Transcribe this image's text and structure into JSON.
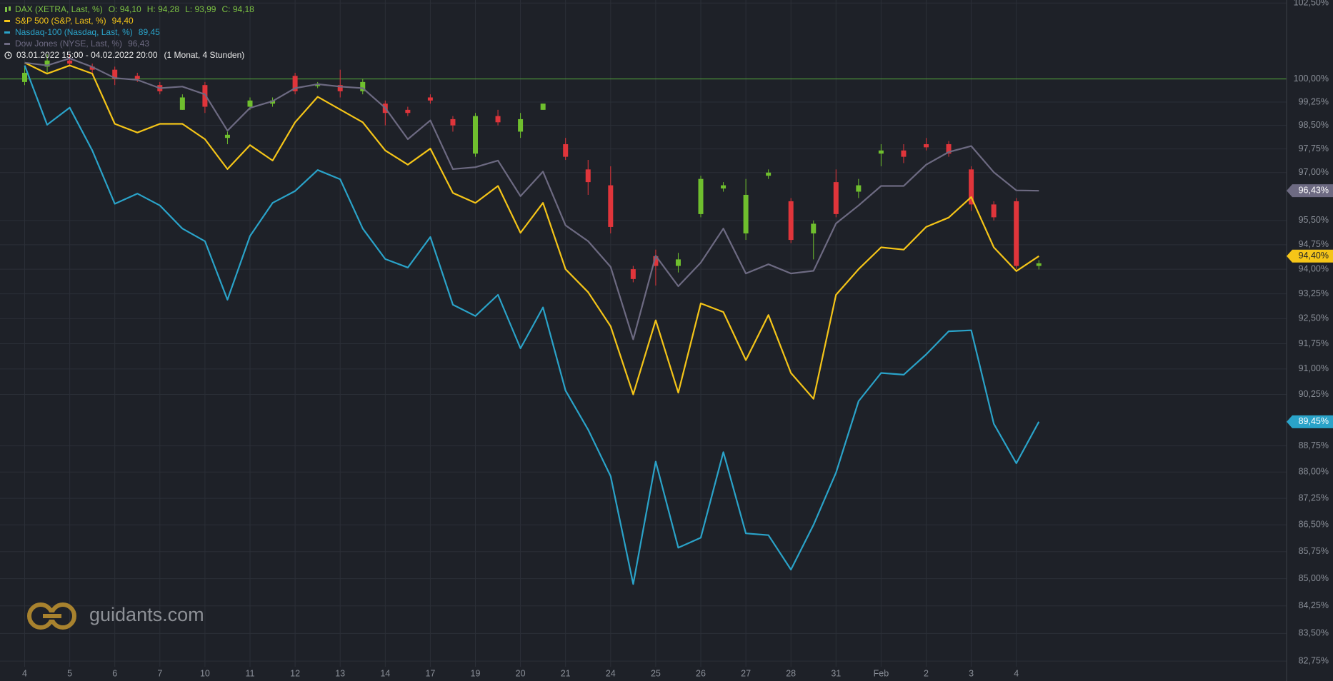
{
  "chart_data": {
    "type": "line",
    "log_scale": true,
    "ylim": [
      82.6,
      102.6
    ],
    "yticks": [
      {
        "value": 102.5,
        "label": "102,50%"
      },
      {
        "value": 100,
        "label": "100,00%"
      },
      {
        "value": 99.25,
        "label": "99,25%"
      },
      {
        "value": 98.5,
        "label": "98,50%"
      },
      {
        "value": 97.75,
        "label": "97,75%"
      },
      {
        "value": 97,
        "label": "97,00%"
      },
      {
        "value": 95.5,
        "label": "95,50%"
      },
      {
        "value": 94.75,
        "label": "94,75%"
      },
      {
        "value": 94,
        "label": "94,00%"
      },
      {
        "value": 93.25,
        "label": "93,25%"
      },
      {
        "value": 92.5,
        "label": "92,50%"
      },
      {
        "value": 91.75,
        "label": "91,75%"
      },
      {
        "value": 91,
        "label": "91,00%"
      },
      {
        "value": 90.25,
        "label": "90,25%"
      },
      {
        "value": 88.75,
        "label": "88,75%"
      },
      {
        "value": 88,
        "label": "88,00%"
      },
      {
        "value": 87.25,
        "label": "87,25%"
      },
      {
        "value": 86.5,
        "label": "86,50%"
      },
      {
        "value": 85.75,
        "label": "85,75%"
      },
      {
        "value": 85,
        "label": "85,00%"
      },
      {
        "value": 84.25,
        "label": "84,25%"
      },
      {
        "value": 83.5,
        "label": "83,50%"
      },
      {
        "value": 82.75,
        "label": "82,75%"
      }
    ],
    "grid": true,
    "reference_line": 100,
    "reference_color": "#4f9a3a",
    "categories": [
      "4",
      null,
      "5",
      null,
      "6",
      null,
      "7",
      null,
      "10",
      null,
      "11",
      null,
      "12",
      null,
      "13",
      null,
      "14",
      null,
      "17",
      null,
      "19",
      null,
      "20",
      null,
      "21",
      null,
      "24",
      null,
      "25",
      null,
      "26",
      null,
      "27",
      null,
      "28",
      null,
      "31",
      null,
      "Feb",
      null,
      "2",
      null,
      "3",
      null,
      "4",
      null
    ],
    "date_range": "03.01.2022 15:00 - 04.02.2022 20:00",
    "period": "(1 Monat, 4 Stunden)",
    "watermark": "guidants.com",
    "candles": {
      "name": "DAX (XETRA, Last, %)",
      "ohlc_labels": [
        "O: 94,10",
        "H: 94,28",
        "L: 93,99",
        "C: 94,18"
      ],
      "color": "#7cc243",
      "color_up": "#6fbf2e",
      "color_down": "#e0353b",
      "open": [
        99.9,
        100.4,
        100.6,
        100.4,
        100.3,
        100.1,
        99.8,
        99.0,
        99.8,
        98.1,
        99.1,
        99.2,
        100.1,
        99.8,
        99.8,
        99.6,
        99.2,
        99.0,
        99.4,
        98.7,
        97.6,
        98.8,
        98.3,
        99.0,
        97.9,
        97.1,
        96.6,
        94.0,
        94.4,
        94.1,
        95.7,
        96.5,
        95.1,
        96.9,
        96.1,
        95.1,
        96.7,
        96.4,
        97.6,
        97.7,
        97.9,
        97.9,
        97.1,
        96.0,
        96.1,
        94.1
      ],
      "high": [
        100.4,
        100.8,
        100.8,
        100.5,
        100.4,
        100.2,
        99.9,
        99.5,
        99.9,
        98.3,
        99.4,
        99.4,
        100.2,
        99.9,
        100.3,
        100.0,
        99.3,
        99.1,
        99.5,
        98.8,
        98.9,
        99.0,
        98.9,
        99.2,
        98.1,
        97.4,
        97.2,
        94.1,
        94.6,
        94.5,
        96.9,
        96.7,
        96.8,
        97.1,
        96.2,
        95.5,
        97.1,
        96.8,
        97.9,
        97.9,
        98.1,
        98.0,
        97.2,
        96.1,
        96.2,
        94.28
      ],
      "low": [
        99.8,
        100.2,
        100.4,
        100.2,
        99.8,
        99.9,
        99.5,
        99.0,
        98.9,
        97.9,
        99.0,
        99.1,
        99.5,
        99.7,
        99.4,
        99.5,
        98.5,
        98.8,
        99.2,
        98.3,
        97.5,
        98.5,
        98.1,
        99.0,
        97.4,
        96.3,
        95.1,
        93.6,
        93.5,
        93.9,
        95.6,
        96.4,
        94.9,
        96.8,
        94.8,
        94.3,
        95.6,
        96.2,
        97.2,
        97.3,
        97.7,
        97.5,
        95.8,
        95.5,
        94.0,
        93.99
      ],
      "close": [
        100.2,
        100.6,
        100.5,
        100.3,
        100.0,
        100.0,
        99.6,
        99.4,
        99.1,
        98.2,
        99.3,
        99.3,
        99.6,
        99.8,
        99.6,
        99.9,
        98.9,
        98.9,
        99.3,
        98.5,
        98.8,
        98.6,
        98.7,
        99.2,
        97.5,
        96.7,
        95.3,
        93.7,
        94.1,
        94.3,
        96.8,
        96.6,
        96.3,
        97.0,
        94.9,
        95.4,
        95.7,
        96.6,
        97.7,
        97.5,
        97.8,
        97.6,
        96.0,
        95.6,
        94.1,
        94.18
      ]
    },
    "series": [
      {
        "name": "S&P 500 (S&P, Last, %)",
        "last_label": "94,40",
        "color": "#f5c518",
        "badge": {
          "value": 94.4,
          "label": "94,40%"
        },
        "badge_text_color": "#1e2128",
        "values": [
          100.53,
          100.17,
          100.44,
          100.17,
          98.55,
          98.27,
          98.55,
          98.55,
          98.06,
          97.11,
          97.87,
          97.38,
          98.6,
          99.42,
          99.01,
          98.6,
          97.7,
          97.25,
          97.76,
          96.36,
          96.05,
          96.58,
          95.12,
          96.05,
          94.0,
          93.3,
          92.27,
          90.25,
          92.45,
          90.3,
          92.96,
          92.7,
          91.26,
          92.61,
          90.88,
          90.12,
          93.22,
          94.0,
          94.67,
          94.6,
          95.3,
          95.59,
          96.23,
          94.67,
          93.94,
          94.4
        ]
      },
      {
        "name": "Nasdaq-100 (Nasdaq, Last, %)",
        "last_label": "89,45",
        "color": "#2aa3c9",
        "badge": {
          "value": 89.45,
          "label": "89,45%"
        },
        "badge_text_color": "#ffffff",
        "values": [
          100.44,
          98.52,
          99.07,
          97.7,
          96.02,
          96.34,
          95.97,
          95.25,
          94.86,
          93.07,
          95.02,
          96.05,
          96.42,
          97.08,
          96.79,
          95.25,
          94.31,
          94.05,
          94.99,
          92.92,
          92.58,
          93.22,
          91.61,
          92.84,
          90.36,
          89.22,
          87.88,
          84.85,
          88.3,
          85.86,
          86.14,
          88.57,
          86.26,
          86.21,
          85.25,
          86.5,
          87.98,
          90.05,
          90.88,
          90.83,
          91.43,
          92.12,
          92.15,
          89.39,
          88.25,
          89.45
        ]
      },
      {
        "name": "Dow Jones (NYSE, Last, %)",
        "last_label": "96,43",
        "color": "#6d6a82",
        "badge": {
          "value": 96.43,
          "label": "96,43%"
        },
        "badge_text_color": "#ffffff",
        "values": [
          100.53,
          100.44,
          100.67,
          100.39,
          100.03,
          99.97,
          99.7,
          99.75,
          99.5,
          98.33,
          99.06,
          99.28,
          99.7,
          99.83,
          99.75,
          99.7,
          99.06,
          98.06,
          98.66,
          97.11,
          97.17,
          97.38,
          96.26,
          97.03,
          95.35,
          94.86,
          94.07,
          91.88,
          94.41,
          93.48,
          94.2,
          95.25,
          93.87,
          94.15,
          93.87,
          93.95,
          95.41,
          95.97,
          96.58,
          96.58,
          97.25,
          97.65,
          97.84,
          97.01,
          96.44,
          96.43
        ]
      }
    ]
  }
}
